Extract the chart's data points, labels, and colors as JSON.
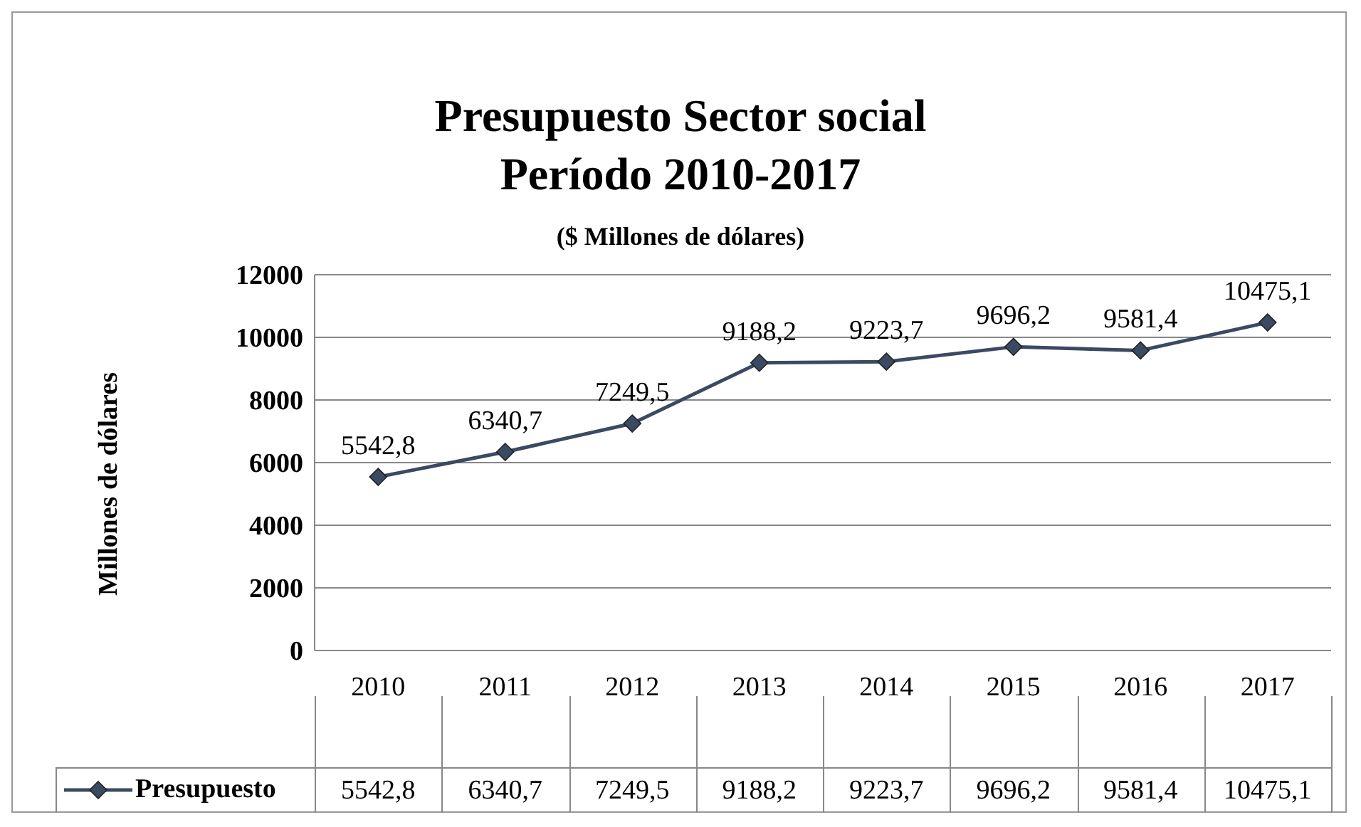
{
  "chart_data": {
    "type": "line",
    "title": "Presupuesto Sector social",
    "subtitle": "Período 2010-2017",
    "annotations": [
      "($ Millones de dólares)"
    ],
    "ylabel": "Millones de dólares",
    "categories": [
      "2010",
      "2011",
      "2012",
      "2013",
      "2014",
      "2015",
      "2016",
      "2017"
    ],
    "series": [
      {
        "name": "Presupuesto",
        "color": "#3b4a63",
        "values": [
          5542.8,
          6340.7,
          7249.5,
          9188.2,
          9223.7,
          9696.2,
          9581.4,
          10475.1
        ],
        "value_labels": [
          "5542,8",
          "6340,7",
          "7249,5",
          "9188,2",
          "9223,7",
          "9696,2",
          "9581,4",
          "10475,1"
        ]
      }
    ],
    "ylim": [
      0,
      12000
    ],
    "yticks": [
      0,
      2000,
      4000,
      6000,
      8000,
      10000,
      12000
    ],
    "grid": "y",
    "legend": "bottom",
    "marker": "diamond",
    "line_style": "solid"
  }
}
